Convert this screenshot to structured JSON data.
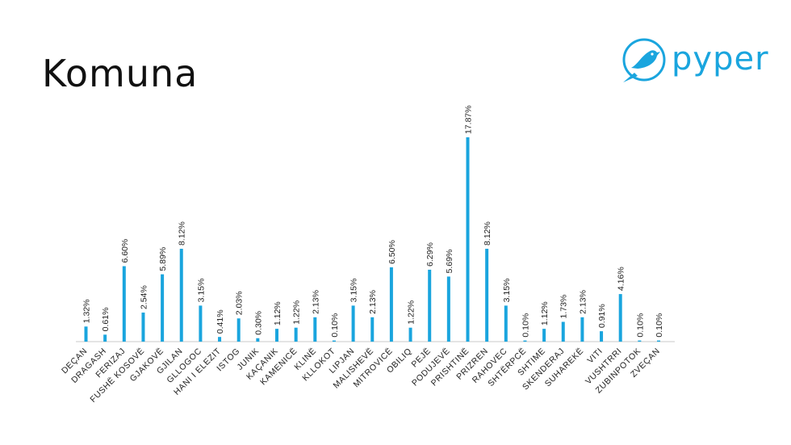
{
  "slide": {
    "title": "Komuna"
  },
  "logo": {
    "text": "pyper",
    "icon": "bird-icon",
    "color": "#1aa5de"
  },
  "chart_data": {
    "type": "bar",
    "title": "",
    "xlabel": "",
    "ylabel": "",
    "ylim": [
      0,
      18
    ],
    "grid": false,
    "bar_color": "#1aa5de",
    "categories": [
      "DEÇAN",
      "DRAGASH",
      "FERIZAJ",
      "FUSHË KOSOVË",
      "GJAKOVË",
      "GJILAN",
      "GLLOGOC",
      "HANI I ELEZIT",
      "ISTOG",
      "JUNIK",
      "KAÇANIK",
      "KAMENICË",
      "KLINË",
      "KLLOKOT",
      "LIPJAN",
      "MALISHEVË",
      "MITROVICË",
      "OBILIQ",
      "PEJË",
      "PODUJEVË",
      "PRISHTINË",
      "PRIZREN",
      "RAHOVEC",
      "SHTËRPCË",
      "SHTIME",
      "SKENDERAJ",
      "SUHAREKË",
      "VITI",
      "VUSHTRRI",
      "ZUBINPOTOK",
      "ZVEÇAN"
    ],
    "values": [
      1.32,
      0.61,
      6.6,
      2.54,
      5.89,
      8.12,
      3.15,
      0.41,
      2.03,
      0.3,
      1.12,
      1.22,
      2.13,
      0.1,
      3.15,
      2.13,
      6.5,
      1.22,
      6.29,
      5.69,
      17.87,
      8.12,
      3.15,
      0.1,
      1.12,
      1.73,
      2.13,
      0.91,
      4.16,
      0.1,
      0.1
    ],
    "data_labels": [
      "1.32%",
      "0.61%",
      "6.60%",
      "2.54%",
      "5.89%",
      "8.12%",
      "3.15%",
      "0.41%",
      "2.03%",
      "0.30%",
      "1.12%",
      "1.22%",
      "2.13%",
      "0.10%",
      "3.15%",
      "2.13%",
      "6.50%",
      "1.22%",
      "6.29%",
      "5.69%",
      "17.87%",
      "8.12%",
      "3.15%",
      "0.10%",
      "1.12%",
      "1.73%",
      "2.13%",
      "0.91%",
      "4.16%",
      "0.10%",
      "0.10%"
    ]
  }
}
